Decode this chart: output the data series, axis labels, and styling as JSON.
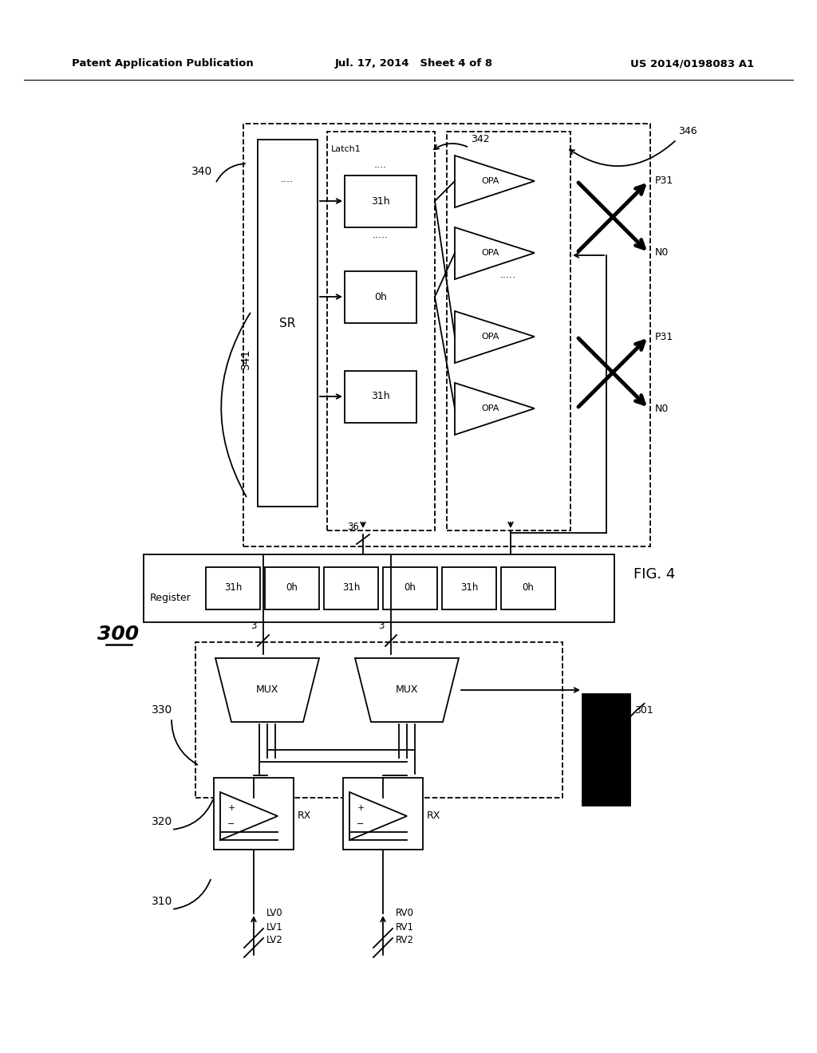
{
  "title_left": "Patent Application Publication",
  "title_center": "Jul. 17, 2014   Sheet 4 of 8",
  "title_right": "US 2014/0198083 A1",
  "fig_label": "FIG. 4",
  "main_label": "300",
  "background": "#ffffff"
}
